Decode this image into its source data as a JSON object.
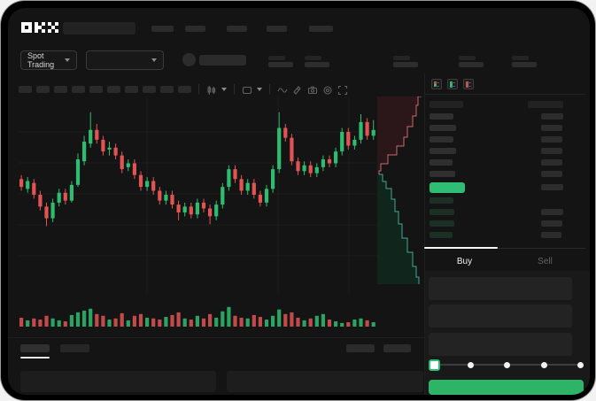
{
  "brand": "OKX",
  "ticker_bar": {
    "market_selector_label": "Spot Trading"
  },
  "chart_toolbar": {
    "icons": [
      "candles-icon",
      "chevron-down-icon",
      "indicator-box-icon",
      "chevron-down-icon",
      "line-wave-icon",
      "layers-icon",
      "camera-icon",
      "settings-gear-icon",
      "fullscreen-icon"
    ],
    "timeframe_placeholder_count": 10
  },
  "order_book": {
    "view_icons": [
      "book-combined-icon",
      "book-bids-icon",
      "book-asks-icon"
    ],
    "asks": [
      {
        "price_w": 27,
        "amount_w": 25
      },
      {
        "price_w": 30,
        "amount_w": 24
      },
      {
        "price_w": 27,
        "amount_w": 24
      },
      {
        "price_w": 30,
        "amount_w": 24
      },
      {
        "price_w": 26,
        "amount_w": 24
      },
      {
        "price_w": 29,
        "amount_w": 24
      }
    ],
    "last_price": {
      "width": 40,
      "amount_w": 25,
      "color": "#2ebd72"
    },
    "bids": [
      {
        "price_w": 27,
        "amount_w": 0
      },
      {
        "price_w": 28,
        "amount_w": 25
      },
      {
        "price_w": 28,
        "amount_w": 24
      },
      {
        "price_w": 26,
        "amount_w": 23
      }
    ]
  },
  "trade_panel": {
    "buy_tab": "Buy",
    "sell_tab": "Sell",
    "field_count": 3,
    "slider_stops": 5,
    "submit_color": "#2eb467"
  },
  "colors": {
    "up": "#2ebd70",
    "down": "#e25454",
    "depth_ask_fill": "#2b1719",
    "depth_ask_line": "#c96a6a",
    "depth_bid_fill": "#10251c",
    "depth_bid_line": "#3fa88f",
    "grid": "#1d1d1d",
    "screen_bg": "#141414"
  },
  "chart_data": [
    {
      "type": "candlestick",
      "note": "values in 0-100 relative price scale, [open,close,low,high]",
      "ylim": [
        0,
        100
      ],
      "grid": true,
      "candles": [
        [
          58,
          54,
          52,
          60
        ],
        [
          53,
          57,
          51,
          59
        ],
        [
          56,
          50,
          48,
          58
        ],
        [
          50,
          44,
          42,
          52
        ],
        [
          44,
          38,
          34,
          46
        ],
        [
          38,
          46,
          36,
          48
        ],
        [
          46,
          51,
          44,
          53
        ],
        [
          51,
          47,
          45,
          53
        ],
        [
          47,
          55,
          46,
          57
        ],
        [
          55,
          68,
          54,
          71
        ],
        [
          67,
          77,
          65,
          80
        ],
        [
          76,
          83,
          74,
          92
        ],
        [
          83,
          78,
          76,
          86
        ],
        [
          78,
          72,
          70,
          80
        ],
        [
          73,
          74,
          70,
          77
        ],
        [
          74,
          70,
          68,
          76
        ],
        [
          70,
          63,
          61,
          72
        ],
        [
          64,
          66,
          62,
          68
        ],
        [
          66,
          60,
          58,
          68
        ],
        [
          60,
          54,
          52,
          62
        ],
        [
          54,
          57,
          52,
          59
        ],
        [
          57,
          52,
          50,
          59
        ],
        [
          52,
          47,
          45,
          54
        ],
        [
          47,
          50,
          45,
          52
        ],
        [
          50,
          45,
          43,
          52
        ],
        [
          45,
          41,
          37,
          47
        ],
        [
          41,
          44,
          39,
          46
        ],
        [
          44,
          40,
          38,
          46
        ],
        [
          40,
          46,
          38,
          48
        ],
        [
          46,
          43,
          41,
          48
        ],
        [
          43,
          39,
          35,
          45
        ],
        [
          39,
          45,
          37,
          47
        ],
        [
          45,
          54,
          43,
          56
        ],
        [
          54,
          63,
          52,
          65
        ],
        [
          63,
          58,
          56,
          65
        ],
        [
          58,
          52,
          50,
          60
        ],
        [
          52,
          56,
          50,
          58
        ],
        [
          56,
          50,
          48,
          58
        ],
        [
          50,
          46,
          44,
          52
        ],
        [
          46,
          53,
          44,
          55
        ],
        [
          53,
          63,
          51,
          65
        ],
        [
          63,
          84,
          61,
          92
        ],
        [
          84,
          79,
          77,
          86
        ],
        [
          79,
          67,
          65,
          81
        ],
        [
          67,
          62,
          60,
          69
        ],
        [
          62,
          65,
          60,
          67
        ],
        [
          65,
          61,
          59,
          67
        ],
        [
          61,
          64,
          59,
          66
        ],
        [
          64,
          68,
          62,
          70
        ],
        [
          68,
          66,
          64,
          70
        ],
        [
          66,
          72,
          64,
          74
        ],
        [
          72,
          82,
          70,
          84
        ],
        [
          82,
          75,
          73,
          84
        ],
        [
          75,
          78,
          73,
          80
        ],
        [
          78,
          87,
          76,
          91
        ],
        [
          87,
          80,
          78,
          89
        ],
        [
          80,
          83,
          78,
          88
        ]
      ]
    },
    {
      "type": "bar",
      "name": "volume",
      "values": [
        44,
        31,
        40,
        35,
        53,
        40,
        31,
        26,
        57,
        70,
        79,
        88,
        62,
        53,
        35,
        40,
        66,
        31,
        53,
        62,
        44,
        40,
        35,
        48,
        57,
        70,
        40,
        35,
        53,
        40,
        62,
        44,
        75,
        97,
        53,
        44,
        40,
        57,
        48,
        35,
        53,
        84,
        62,
        70,
        44,
        31,
        40,
        53,
        62,
        35,
        26,
        18,
        22,
        35,
        40,
        31,
        22
      ]
    },
    {
      "type": "area",
      "name": "depth",
      "ask_curve": [
        [
          50,
          0
        ],
        [
          46,
          10
        ],
        [
          44,
          22
        ],
        [
          40,
          34
        ],
        [
          34,
          46
        ],
        [
          30,
          56
        ],
        [
          22,
          66
        ],
        [
          12,
          76
        ],
        [
          4,
          84
        ],
        [
          2,
          88
        ]
      ],
      "bid_curve": [
        [
          2,
          88
        ],
        [
          6,
          96
        ],
        [
          10,
          104
        ],
        [
          16,
          116
        ],
        [
          20,
          130
        ],
        [
          24,
          144
        ],
        [
          28,
          160
        ],
        [
          34,
          176
        ],
        [
          40,
          192
        ],
        [
          44,
          204
        ],
        [
          47,
          212
        ]
      ]
    }
  ]
}
